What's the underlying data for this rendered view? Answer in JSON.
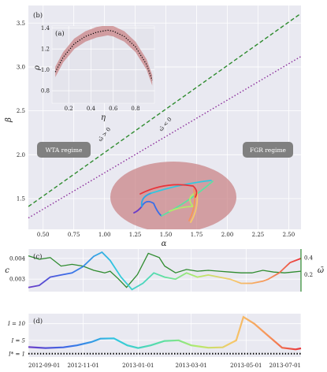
{
  "chart_data": [
    {
      "panel": "(b)",
      "type": "line",
      "xlabel": "α",
      "ylabel": "β",
      "xlim": [
        0.38,
        2.6
      ],
      "ylim": [
        1.15,
        3.7
      ],
      "x_ticks": [
        "0.50",
        "0.75",
        "1.00",
        "1.25",
        "1.50",
        "1.75",
        "2.00",
        "2.25",
        "2.50"
      ],
      "y_ticks": [
        "1.5",
        "2.0",
        "2.5",
        "3.0",
        "3.5"
      ],
      "grid": true,
      "series": [
        {
          "name": "ω̄ > 0",
          "color": "#2e8b2e",
          "style": "dashed",
          "x": [
            0.38,
            2.6
          ],
          "y": [
            1.41,
            3.61
          ]
        },
        {
          "name": "ω̄ < 0",
          "color": "#8b2e9c",
          "style": "dotted",
          "x": [
            0.38,
            2.6
          ],
          "y": [
            1.28,
            3.12
          ]
        }
      ],
      "annotations": [
        "WTA regime",
        "FGR regime"
      ]
    },
    {
      "panel": "(a)",
      "type": "line",
      "xlabel": "η",
      "ylabel": "ρ",
      "xlim": [
        0.05,
        0.97
      ],
      "ylim": [
        0.68,
        1.42
      ],
      "x_ticks": [
        "0.2",
        "0.4",
        "0.6",
        "0.8"
      ],
      "y_ticks": [
        "0.8",
        "1.0",
        "1.2",
        "1.4"
      ],
      "series": [
        {
          "name": "",
          "style": "dotted",
          "x": [
            0.08,
            0.15,
            0.25,
            0.35,
            0.45,
            0.55,
            0.6,
            0.7,
            0.8,
            0.9,
            0.95
          ],
          "y": [
            0.98,
            1.12,
            1.25,
            1.32,
            1.36,
            1.38,
            1.37,
            1.32,
            1.22,
            1.05,
            0.9
          ]
        }
      ]
    },
    {
      "panel": "(c)",
      "type": "line",
      "ylabel": "c",
      "ylabel_right": "ω̄",
      "y_ticks": [
        "0.003",
        "0.004"
      ],
      "y_ticks_right": [
        "0.2",
        "0.4"
      ],
      "series": [
        {
          "name": "c",
          "style": "gradient",
          "x": [
            0,
            0.04,
            0.08,
            0.12,
            0.16,
            0.2,
            0.24,
            0.27,
            0.3,
            0.34,
            0.38,
            0.42,
            0.46,
            0.5,
            0.54,
            0.58,
            0.62,
            0.66,
            0.7,
            0.74,
            0.78,
            0.82,
            0.86,
            0.88,
            0.92,
            0.96,
            1.0
          ],
          "y": [
            0.0026,
            0.0027,
            0.0031,
            0.0032,
            0.0033,
            0.0036,
            0.0041,
            0.0043,
            0.0039,
            0.0031,
            0.0025,
            0.0028,
            0.0033,
            0.0031,
            0.003,
            0.0033,
            0.0031,
            0.0032,
            0.0031,
            0.003,
            0.0028,
            0.0028,
            0.0029,
            0.003,
            0.0033,
            0.0038,
            0.004
          ]
        },
        {
          "name": "ω̄",
          "color": "#2e8b2e",
          "x": [
            0,
            0.04,
            0.08,
            0.12,
            0.16,
            0.2,
            0.24,
            0.28,
            0.3,
            0.33,
            0.36,
            0.4,
            0.44,
            0.48,
            0.5,
            0.54,
            0.58,
            0.62,
            0.66,
            0.7,
            0.74,
            0.78,
            0.82,
            0.86,
            0.9,
            0.94,
            0.97,
            1.0
          ],
          "y": [
            0.42,
            0.38,
            0.4,
            0.3,
            0.32,
            0.3,
            0.25,
            0.22,
            0.24,
            0.15,
            0.05,
            0.2,
            0.45,
            0.4,
            0.3,
            0.22,
            0.26,
            0.24,
            0.25,
            0.24,
            0.23,
            0.22,
            0.22,
            0.25,
            0.23,
            0.22,
            0.23,
            0.24
          ]
        }
      ]
    },
    {
      "panel": "(d)",
      "type": "line",
      "y_ticks": [
        "I* = 1",
        "I = 5",
        "I = 10"
      ],
      "x_ticks": [
        "2012-09-01",
        "2012-11-01",
        "2013-01-01",
        "2013-03-01",
        "2013-05-01",
        "2013-07-01"
      ],
      "xlim": [
        "2012-09-01",
        "2013-07-01"
      ],
      "ylim": [
        0,
        13
      ],
      "series": [
        {
          "name": "I",
          "style": "gradient",
          "x": [
            "2012-09-01",
            "2012-09-20",
            "2012-10-10",
            "2012-10-25",
            "2012-11-10",
            "2012-11-20",
            "2012-12-05",
            "2012-12-20",
            "2013-01-01",
            "2013-01-15",
            "2013-01-30",
            "2013-02-15",
            "2013-03-01",
            "2013-03-20",
            "2013-04-05",
            "2013-04-20",
            "2013-04-28",
            "2013-05-10",
            "2013-05-25",
            "2013-06-10",
            "2013-06-25",
            "2013-07-01"
          ],
          "y": [
            3,
            2.7,
            2.9,
            3.5,
            4.5,
            5.5,
            5.6,
            3.5,
            2.7,
            3.5,
            4.8,
            5.0,
            3.5,
            2.8,
            2.9,
            5,
            12,
            10,
            6.5,
            2.8,
            2.3,
            2.6
          ]
        },
        {
          "name": "I*",
          "style": "dotted",
          "color": "#000000",
          "x": [
            "2012-09-01",
            "2013-07-01"
          ],
          "y": [
            1,
            1
          ]
        }
      ]
    }
  ],
  "texts": {
    "panel_b": "(b)",
    "panel_a": "(a)",
    "panel_c": "(c)",
    "panel_d": "(d)",
    "label_pos": "ω̄ > 0",
    "label_neg": "ω̄ < 0",
    "wta": "WTA regime",
    "fgr": "FGR regime",
    "xlabel_b": "α",
    "ylabel_b": "β",
    "xlabel_a": "η",
    "ylabel_a": "ρ",
    "ylabel_c": "c",
    "ylabel_c_right": "ω̄"
  },
  "colors": {
    "panel_bg": "#e9e9f1",
    "grid": "#ffffff",
    "blob": "#c77d80",
    "regime_box": "#808080",
    "omega_pos": "#2e8b2e",
    "omega_neg": "#8b2e9c",
    "c_line": "#2e8b2e"
  }
}
